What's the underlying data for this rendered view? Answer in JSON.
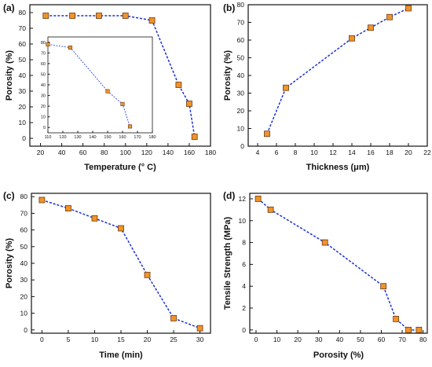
{
  "colors": {
    "line": "#1a2fd6",
    "marker_fill": "#f0932b",
    "marker_edge": "#6b3a12",
    "axis": "#111111"
  },
  "chart_data": [
    {
      "id": "a",
      "type": "line",
      "panel_label": "(a)",
      "xlabel": "Temperature (° C)",
      "ylabel": "Porosity (%)",
      "xlim": [
        10,
        180
      ],
      "ylim": [
        -5,
        85
      ],
      "xticks": [
        "20",
        "40",
        "60",
        "80",
        "100",
        "120",
        "140",
        "160",
        "180"
      ],
      "yticks": [
        "0",
        "10",
        "20",
        "30",
        "40",
        "50",
        "60",
        "70",
        "80"
      ],
      "series": [
        {
          "x": [
            25,
            50,
            75,
            100,
            125,
            150,
            160,
            165
          ],
          "y": [
            78,
            78,
            78,
            78,
            75,
            34,
            22,
            1
          ]
        }
      ],
      "inset": {
        "xlim": [
          110,
          180
        ],
        "ylim": [
          -5,
          85
        ],
        "xticks": [
          "110",
          "120",
          "130",
          "140",
          "150",
          "160",
          "170",
          "180"
        ],
        "yticks": [
          "0",
          "10",
          "20",
          "30",
          "40",
          "50",
          "60",
          "70",
          "80"
        ],
        "series": [
          {
            "x": [
              110,
              125,
              150,
              160,
              165
            ],
            "y": [
              78,
              75,
              34,
              22,
              1
            ]
          }
        ]
      }
    },
    {
      "id": "b",
      "type": "line",
      "panel_label": "(b)",
      "xlabel": "Thickness (μm)",
      "ylabel": "Porosity (%)",
      "xlim": [
        3,
        22
      ],
      "ylim": [
        0,
        80
      ],
      "xticks": [
        "4",
        "6",
        "8",
        "10",
        "12",
        "14",
        "16",
        "18",
        "20",
        "22"
      ],
      "yticks": [
        "0",
        "10",
        "20",
        "30",
        "40",
        "50",
        "60",
        "70",
        "80"
      ],
      "series": [
        {
          "x": [
            5,
            7,
            14,
            16,
            18,
            20
          ],
          "y": [
            7,
            33,
            61,
            67,
            73,
            78
          ]
        }
      ]
    },
    {
      "id": "c",
      "type": "line",
      "panel_label": "(c)",
      "xlabel": "Time (min)",
      "ylabel": "Porosity (%)",
      "xlim": [
        -2,
        32
      ],
      "ylim": [
        -2,
        82
      ],
      "xticks": [
        "0",
        "5",
        "10",
        "15",
        "20",
        "25",
        "30"
      ],
      "yticks": [
        "0",
        "10",
        "20",
        "30",
        "40",
        "50",
        "60",
        "70",
        "80"
      ],
      "series": [
        {
          "x": [
            0,
            5,
            10,
            15,
            20,
            25,
            30
          ],
          "y": [
            78,
            73,
            67,
            61,
            33,
            7,
            1
          ]
        }
      ]
    },
    {
      "id": "d",
      "type": "line",
      "panel_label": "(d)",
      "xlabel": "Porosity (%)",
      "ylabel": "Tensile Strength (MPa)",
      "xlim": [
        -3,
        82
      ],
      "ylim": [
        -0.3,
        12.5
      ],
      "xticks": [
        "0",
        "10",
        "20",
        "30",
        "40",
        "50",
        "60",
        "70",
        "80"
      ],
      "yticks": [
        "0",
        "2",
        "4",
        "6",
        "8",
        "10",
        "12"
      ],
      "series": [
        {
          "x": [
            1,
            7,
            33,
            61,
            67,
            73,
            78
          ],
          "y": [
            12,
            11,
            8,
            4,
            1,
            0,
            0
          ]
        }
      ]
    }
  ]
}
